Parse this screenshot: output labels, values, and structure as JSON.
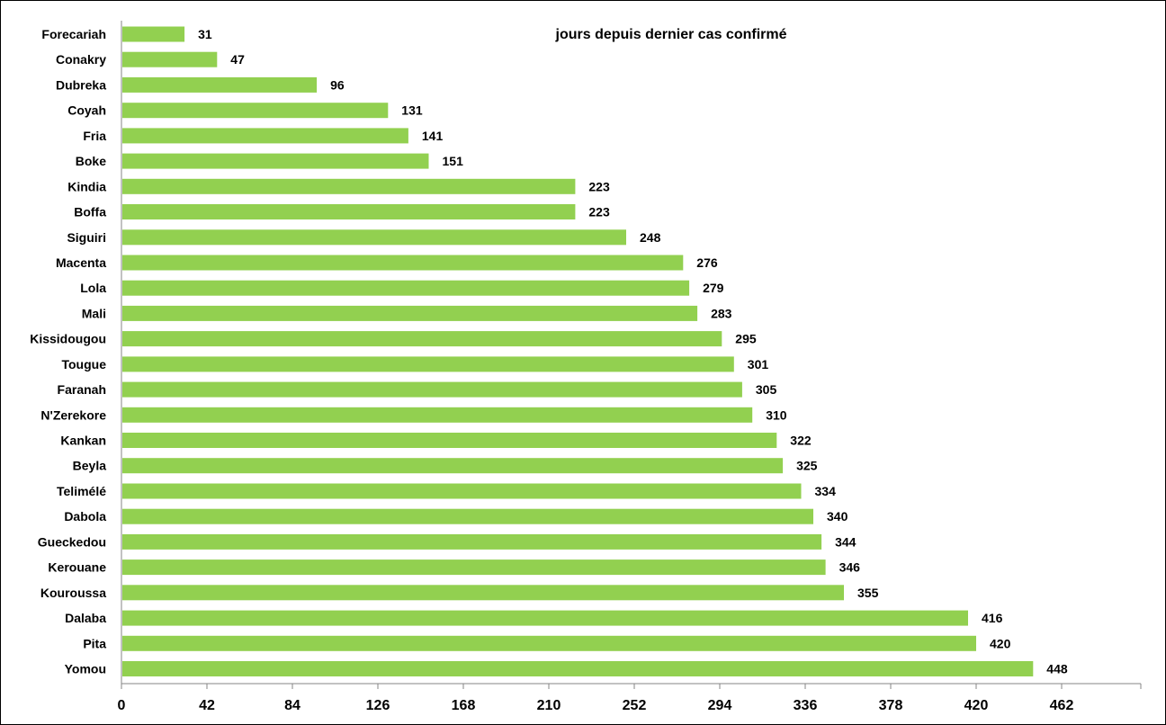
{
  "chart_data": {
    "type": "bar",
    "orientation": "horizontal",
    "title": "jours depuis dernier cas confirmé",
    "categories": [
      "Forecariah",
      "Conakry",
      "Dubreka",
      "Coyah",
      "Fria",
      "Boke",
      "Kindia",
      "Boffa",
      "Siguiri",
      "Macenta",
      "Lola",
      "Mali",
      "Kissidougou",
      "Tougue",
      "Faranah",
      "N'Zerekore",
      "Kankan",
      "Beyla",
      "Telimélé",
      "Dabola",
      "Gueckedou",
      "Kerouane",
      "Kouroussa",
      "Dalaba",
      "Pita",
      "Yomou"
    ],
    "values": [
      31,
      47,
      96,
      131,
      141,
      151,
      223,
      223,
      248,
      276,
      279,
      283,
      295,
      301,
      305,
      310,
      322,
      325,
      334,
      340,
      344,
      346,
      355,
      416,
      420,
      448
    ],
    "x_ticks": [
      0,
      42,
      84,
      126,
      168,
      210,
      252,
      294,
      336,
      378,
      420,
      462
    ],
    "xlim": [
      0,
      504
    ],
    "xlabel": "",
    "ylabel": "",
    "grid": false,
    "legend": "none",
    "bar_color": "#92d050"
  }
}
